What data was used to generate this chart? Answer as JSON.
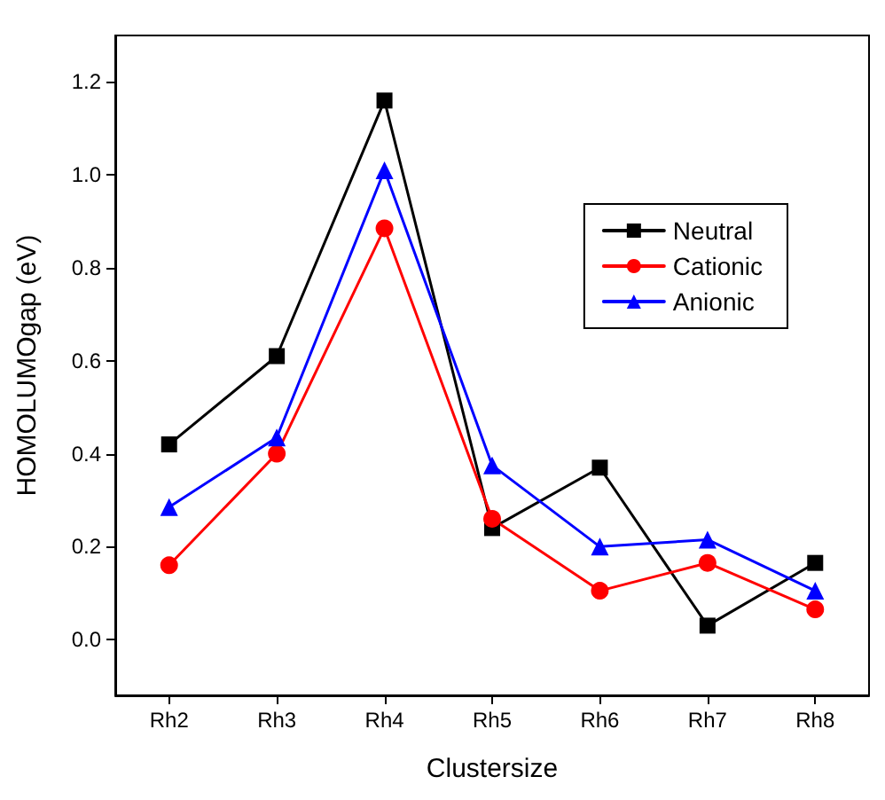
{
  "chart_data": {
    "type": "line",
    "xlabel": "Clustersize",
    "ylabel": "HOMOLUMOgap (eV)",
    "categories": [
      "Rh2",
      "Rh3",
      "Rh4",
      "Rh5",
      "Rh6",
      "Rh7",
      "Rh8"
    ],
    "series": [
      {
        "name": "Neutral",
        "color": "#000000",
        "marker": "square",
        "values": [
          0.42,
          0.61,
          1.16,
          0.24,
          0.37,
          0.03,
          0.165
        ]
      },
      {
        "name": "Cationic",
        "color": "#ff0000",
        "marker": "circle",
        "values": [
          0.16,
          0.4,
          0.885,
          0.26,
          0.105,
          0.165,
          0.065
        ]
      },
      {
        "name": "Anionic",
        "color": "#0000ff",
        "marker": "triangle",
        "values": [
          0.285,
          0.435,
          1.01,
          0.375,
          0.2,
          0.215,
          0.105
        ]
      }
    ],
    "ylim": [
      -0.12,
      1.3
    ],
    "yticks": [
      {
        "value": 0,
        "label": "0.0"
      },
      {
        "value": 0.2,
        "label": "0.2"
      },
      {
        "value": 0.4,
        "label": "0.4"
      },
      {
        "value": 0.6,
        "label": "0.6"
      },
      {
        "value": 0.8,
        "label": "0.8"
      },
      {
        "value": 1,
        "label": "1.0"
      },
      {
        "value": 1.2,
        "label": "1.2"
      }
    ],
    "grid": false,
    "legend": "top right",
    "line_style": "solid"
  }
}
